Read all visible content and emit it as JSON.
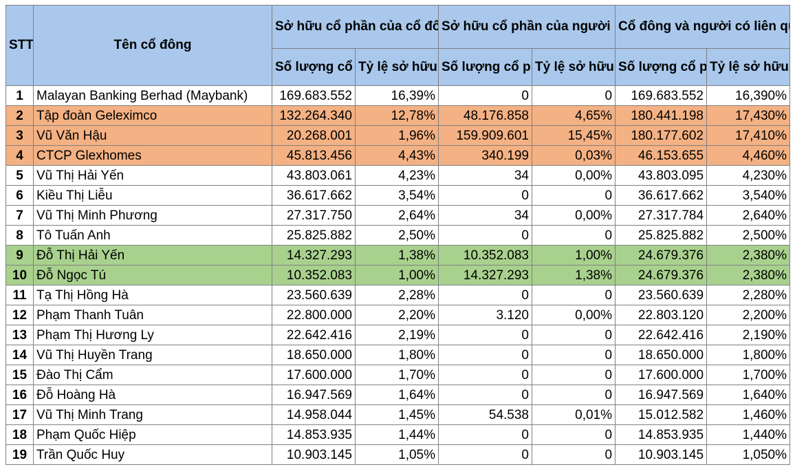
{
  "headers": {
    "stt": "STT",
    "name": "Tên cổ đông",
    "group1": "Sở hữu cổ phần của cổ đông",
    "group2": "Sở hữu cổ phần của người liên quan của cổ đông",
    "group3": "Cổ đông và người có liên quan",
    "qty": "Số lượng cổ phần",
    "pct": "Tỷ lệ sở hữu"
  },
  "colors": {
    "header": "#a9c8ec",
    "highlight_orange": "#f4b183",
    "highlight_green": "#a9d18e"
  },
  "rows": [
    {
      "stt": "1",
      "name": "Malayan Banking Berhad (Maybank)",
      "q1": "169.683.552",
      "p1": "16,39%",
      "q2": "0",
      "p2": "0",
      "q3": "169.683.552",
      "p3": "16,390%",
      "hl": ""
    },
    {
      "stt": "2",
      "name": "Tập đoàn Geleximco",
      "q1": "132.264.340",
      "p1": "12,78%",
      "q2": "48.176.858",
      "p2": "4,65%",
      "q3": "180.441.198",
      "p3": "17,430%",
      "hl": "orange"
    },
    {
      "stt": "3",
      "name": "Vũ Văn Hậu",
      "q1": "20.268.001",
      "p1": "1,96%",
      "q2": "159.909.601",
      "p2": "15,45%",
      "q3": "180.177.602",
      "p3": "17,410%",
      "hl": "orange"
    },
    {
      "stt": "4",
      "name": "CTCP Glexhomes",
      "q1": "45.813.456",
      "p1": "4,43%",
      "q2": "340.199",
      "p2": "0,03%",
      "q3": "46.153.655",
      "p3": "4,460%",
      "hl": "orange"
    },
    {
      "stt": "5",
      "name": "Vũ Thị Hải Yến",
      "q1": "43.803.061",
      "p1": "4,23%",
      "q2": "34",
      "p2": "0,00%",
      "q3": "43.803.095",
      "p3": "4,230%",
      "hl": ""
    },
    {
      "stt": "6",
      "name": "Kiều Thị Liễu",
      "q1": "36.617.662",
      "p1": "3,54%",
      "q2": "0",
      "p2": "0",
      "q3": "36.617.662",
      "p3": "3,540%",
      "hl": ""
    },
    {
      "stt": "7",
      "name": "Vũ Thị Minh Phương",
      "q1": "27.317.750",
      "p1": "2,64%",
      "q2": "34",
      "p2": "0,00%",
      "q3": "27.317.784",
      "p3": "2,640%",
      "hl": ""
    },
    {
      "stt": "8",
      "name": "Tô Tuấn Anh",
      "q1": "25.825.882",
      "p1": "2,50%",
      "q2": "0",
      "p2": "0",
      "q3": "25.825.882",
      "p3": "2,500%",
      "hl": ""
    },
    {
      "stt": "9",
      "name": "Đỗ Thị Hải Yến",
      "q1": "14.327.293",
      "p1": "1,38%",
      "q2": "10.352.083",
      "p2": "1,00%",
      "q3": "24.679.376",
      "p3": "2,380%",
      "hl": "green"
    },
    {
      "stt": "10",
      "name": "Đỗ Ngọc Tú",
      "q1": "10.352.083",
      "p1": "1,00%",
      "q2": "14.327.293",
      "p2": "1,38%",
      "q3": "24.679.376",
      "p3": "2,380%",
      "hl": "green"
    },
    {
      "stt": "11",
      "name": "Tạ Thị Hồng Hà",
      "q1": "23.560.639",
      "p1": "2,28%",
      "q2": "0",
      "p2": "0",
      "q3": "23.560.639",
      "p3": "2,280%",
      "hl": ""
    },
    {
      "stt": "12",
      "name": "Phạm Thanh Tuân",
      "q1": "22.800.000",
      "p1": "2,20%",
      "q2": "3.120",
      "p2": "0,00%",
      "q3": "22.803.120",
      "p3": "2,200%",
      "hl": ""
    },
    {
      "stt": "13",
      "name": "Phạm Thị Hương Ly",
      "q1": "22.642.416",
      "p1": "2,19%",
      "q2": "0",
      "p2": "0",
      "q3": "22.642.416",
      "p3": "2,190%",
      "hl": ""
    },
    {
      "stt": "14",
      "name": "Vũ Thị Huyền Trang",
      "q1": "18.650.000",
      "p1": "1,80%",
      "q2": "0",
      "p2": "0",
      "q3": "18.650.000",
      "p3": "1,800%",
      "hl": ""
    },
    {
      "stt": "15",
      "name": "Đào Thị Cẩm",
      "q1": "17.600.000",
      "p1": "1,70%",
      "q2": "0",
      "p2": "0",
      "q3": "17.600.000",
      "p3": "1,700%",
      "hl": ""
    },
    {
      "stt": "16",
      "name": "Đỗ Hoàng Hà",
      "q1": "16.947.569",
      "p1": "1,64%",
      "q2": "0",
      "p2": "0",
      "q3": "16.947.569",
      "p3": "1,640%",
      "hl": ""
    },
    {
      "stt": "17",
      "name": "Vũ Thị Minh Trang",
      "q1": "14.958.044",
      "p1": "1,45%",
      "q2": "54.538",
      "p2": "0,01%",
      "q3": "15.012.582",
      "p3": "1,460%",
      "hl": ""
    },
    {
      "stt": "18",
      "name": "Phạm Quốc Hiệp",
      "q1": "14.853.935",
      "p1": "1,44%",
      "q2": "0",
      "p2": "0",
      "q3": "14.853.935",
      "p3": "1,440%",
      "hl": ""
    },
    {
      "stt": "19",
      "name": "Trần Quốc Huy",
      "q1": "10.903.145",
      "p1": "1,05%",
      "q2": "0",
      "p2": "0",
      "q3": "10.903.145",
      "p3": "1,050%",
      "hl": ""
    }
  ]
}
